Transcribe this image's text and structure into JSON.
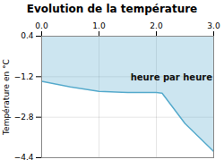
{
  "chart_data": {
    "type": "line",
    "title": "Evolution de la température",
    "ylabel": "Température en °C",
    "annotations": [
      {
        "text": "heure par heure",
        "x": 1.55,
        "y": -1.25
      }
    ],
    "x": [
      0,
      0.5,
      1.0,
      1.5,
      2.0,
      2.1,
      2.5,
      3.0
    ],
    "values": [
      -1.38,
      -1.6,
      -1.78,
      -1.82,
      -1.82,
      -1.85,
      -3.05,
      -4.15
    ],
    "color": "#55aacc",
    "xlim": [
      0,
      3
    ],
    "ylim": [
      -4.4,
      0.4
    ],
    "xticks": [
      0,
      1,
      2,
      3
    ],
    "yticks": [
      0.4,
      -1.2,
      -2.8,
      -4.4
    ],
    "grid": true
  }
}
